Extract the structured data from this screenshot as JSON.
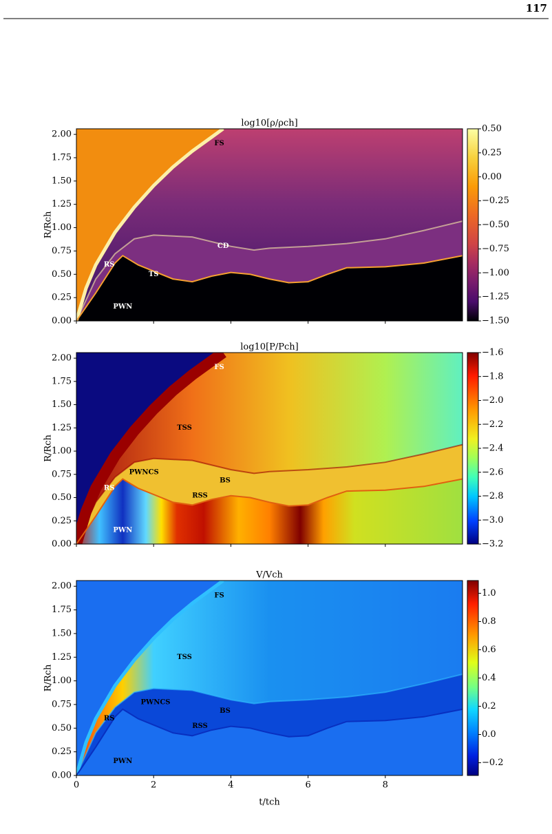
{
  "page_number": "117",
  "figure": {
    "xlim": [
      0,
      10
    ],
    "ylim": [
      0,
      2.06
    ],
    "xticks": [
      0,
      2,
      4,
      6,
      8
    ],
    "xlabel": "t/tch",
    "ylabel": "R/Rch",
    "yticks": [
      {
        "value": 0,
        "label": "0.00"
      },
      {
        "value": 0.25,
        "label": "0.25"
      },
      {
        "value": 0.5,
        "label": "0.50"
      },
      {
        "value": 0.75,
        "label": "0.75"
      },
      {
        "value": 1,
        "label": "1.00"
      },
      {
        "value": 1.25,
        "label": "1.25"
      },
      {
        "value": 1.5,
        "label": "1.50"
      },
      {
        "value": 1.75,
        "label": "1.75"
      },
      {
        "value": 2,
        "label": "2.00"
      }
    ],
    "panels": [
      {
        "title": "log10[ρ/ρch]",
        "clim": [
          -1.5,
          0.5
        ],
        "cticks": [
          {
            "value": 0.5,
            "label": "0.50"
          },
          {
            "value": 0.25,
            "label": "0.25"
          },
          {
            "value": 0,
            "label": "0.00"
          },
          {
            "value": -0.25,
            "label": "−0.25"
          },
          {
            "value": -0.5,
            "label": "−0.50"
          },
          {
            "value": -0.75,
            "label": "−0.75"
          },
          {
            "value": -1,
            "label": "−1.00"
          },
          {
            "value": -1.25,
            "label": "−1.25"
          },
          {
            "value": -1.5,
            "label": "−1.50"
          }
        ],
        "annotations": [
          "FS",
          "CD",
          "RS",
          "TS",
          "PWN"
        ]
      },
      {
        "title": "log10[P/Pch]",
        "clim": [
          -3.2,
          -1.6
        ],
        "cticks": [
          {
            "value": -1.6,
            "label": "−1.6"
          },
          {
            "value": -1.8,
            "label": "−1.8"
          },
          {
            "value": -2,
            "label": "−2.0"
          },
          {
            "value": -2.2,
            "label": "−2.2"
          },
          {
            "value": -2.4,
            "label": "−2.4"
          },
          {
            "value": -2.6,
            "label": "−2.6"
          },
          {
            "value": -2.8,
            "label": "−2.8"
          },
          {
            "value": -3,
            "label": "−3.0"
          },
          {
            "value": -3.2,
            "label": "−3.2"
          }
        ],
        "annotations": [
          "FS",
          "TSS",
          "PWNCS",
          "RS",
          "BS",
          "RSS",
          "PWN"
        ]
      },
      {
        "title": "V/Vch",
        "clim": [
          -0.29,
          1.09
        ],
        "cticks": [
          {
            "value": 1,
            "label": "1.0"
          },
          {
            "value": 0.8,
            "label": "0.8"
          },
          {
            "value": 0.6,
            "label": "0.6"
          },
          {
            "value": 0.4,
            "label": "0.4"
          },
          {
            "value": 0.2,
            "label": "0.2"
          },
          {
            "value": 0,
            "label": "0.0"
          },
          {
            "value": -0.2,
            "label": "−0.2"
          }
        ],
        "annotations": [
          "FS",
          "TSS",
          "PWNCS",
          "RS",
          "BS",
          "RSS",
          "PWN"
        ]
      }
    ]
  }
}
